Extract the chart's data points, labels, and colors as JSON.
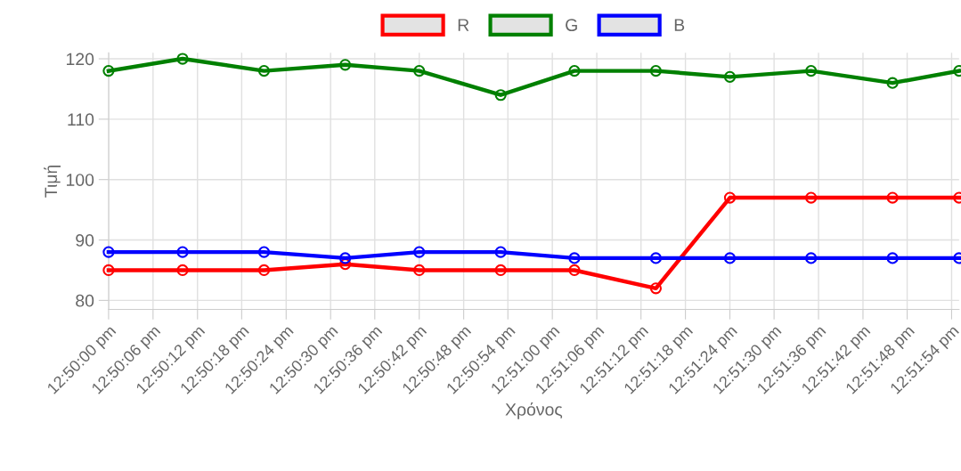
{
  "chart_data": {
    "type": "line",
    "xlabel": "Χρόνος",
    "ylabel": "Τιμή",
    "x": [
      12.83333,
      12.83611,
      12.83917,
      12.84222,
      12.845,
      12.84806,
      12.85083,
      12.85389,
      12.85667,
      12.85972,
      12.86278,
      12.86528
    ],
    "series": [
      {
        "name": "R",
        "color": "#ff0000",
        "values": [
          85,
          85,
          85,
          86,
          85,
          85,
          85,
          82,
          97,
          97,
          97,
          97
        ]
      },
      {
        "name": "G",
        "color": "#008000",
        "values": [
          118,
          120,
          118,
          119,
          118,
          114,
          118,
          118,
          117,
          118,
          116,
          118
        ]
      },
      {
        "name": "B",
        "color": "#0000ff",
        "values": [
          88,
          88,
          88,
          87,
          88,
          88,
          87,
          87,
          87,
          87,
          87,
          87
        ]
      }
    ],
    "xlim": [
      12.83333,
      12.86528
    ],
    "xticks": [
      {
        "value": 12.83333,
        "label": "12:50:00 pm"
      },
      {
        "value": 12.835,
        "label": "12:50:06 pm"
      },
      {
        "value": 12.83667,
        "label": "12:50:12 pm"
      },
      {
        "value": 12.83833,
        "label": "12:50:18 pm"
      },
      {
        "value": 12.84,
        "label": "12:50:24 pm"
      },
      {
        "value": 12.84167,
        "label": "12:50:30 pm"
      },
      {
        "value": 12.84333,
        "label": "12:50:36 pm"
      },
      {
        "value": 12.845,
        "label": "12:50:42 pm"
      },
      {
        "value": 12.84667,
        "label": "12:50:48 pm"
      },
      {
        "value": 12.84833,
        "label": "12:50:54 pm"
      },
      {
        "value": 12.85,
        "label": "12:51:00 pm"
      },
      {
        "value": 12.85167,
        "label": "12:51:06 pm"
      },
      {
        "value": 12.85333,
        "label": "12:51:12 pm"
      },
      {
        "value": 12.855,
        "label": "12:51:18 pm"
      },
      {
        "value": 12.85667,
        "label": "12:51:24 pm"
      },
      {
        "value": 12.85833,
        "label": "12:51:30 pm"
      },
      {
        "value": 12.86,
        "label": "12:51:36 pm"
      },
      {
        "value": 12.86167,
        "label": "12:51:42 pm"
      },
      {
        "value": 12.86333,
        "label": "12:51:48 pm"
      },
      {
        "value": 12.865,
        "label": "12:51:54 pm"
      }
    ],
    "ylim": [
      78.5,
      121
    ],
    "yticks": [
      80,
      90,
      100,
      110,
      120
    ],
    "grid": true,
    "legend": "top",
    "marker": "circle",
    "line_style": "solid"
  }
}
